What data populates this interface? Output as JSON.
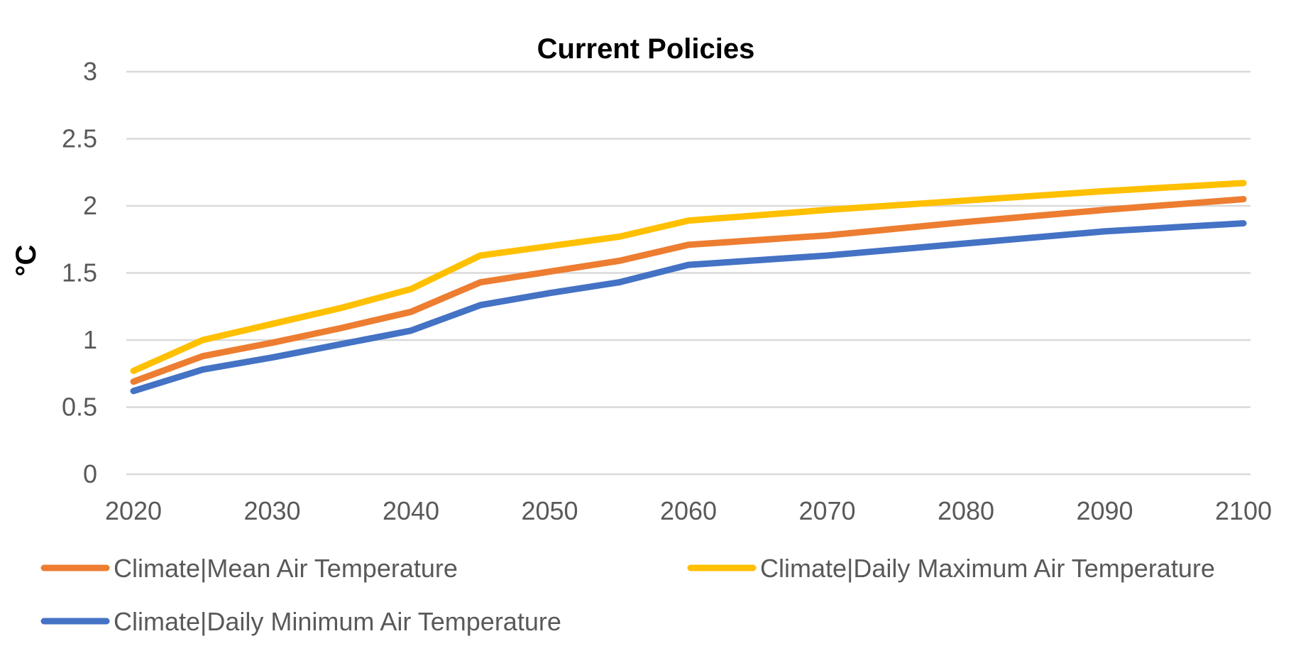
{
  "chart_data": {
    "type": "line",
    "title": "Current Policies",
    "ylabel": "°C",
    "xlabel": "",
    "ylim": [
      0,
      3
    ],
    "yticks": [
      "0",
      "0.5",
      "1",
      "1.5",
      "2",
      "2.5",
      "3"
    ],
    "xlim": [
      2020,
      2100
    ],
    "xticks": [
      "2020",
      "2030",
      "2040",
      "2050",
      "2060",
      "2070",
      "2080",
      "2090",
      "2100"
    ],
    "grid": true,
    "legend_position": "bottom",
    "x": [
      2020,
      2025,
      2030,
      2035,
      2040,
      2045,
      2050,
      2055,
      2060,
      2070,
      2080,
      2090,
      2100
    ],
    "series": [
      {
        "name": "Climate|Mean Air Temperature",
        "color": "#ED7D31",
        "values": [
          0.69,
          0.88,
          0.98,
          1.09,
          1.21,
          1.43,
          1.51,
          1.59,
          1.71,
          1.78,
          1.88,
          1.97,
          2.05
        ]
      },
      {
        "name": "Climate|Daily Maximum Air Temperature",
        "color": "#FFC000",
        "values": [
          0.77,
          1.0,
          1.12,
          1.24,
          1.38,
          1.63,
          1.7,
          1.77,
          1.89,
          1.97,
          2.04,
          2.11,
          2.17
        ]
      },
      {
        "name": "Climate|Daily Minimum Air Temperature",
        "color": "#4472C4",
        "values": [
          0.62,
          0.78,
          0.87,
          0.97,
          1.07,
          1.26,
          1.35,
          1.43,
          1.56,
          1.63,
          1.72,
          1.81,
          1.87
        ]
      }
    ]
  }
}
